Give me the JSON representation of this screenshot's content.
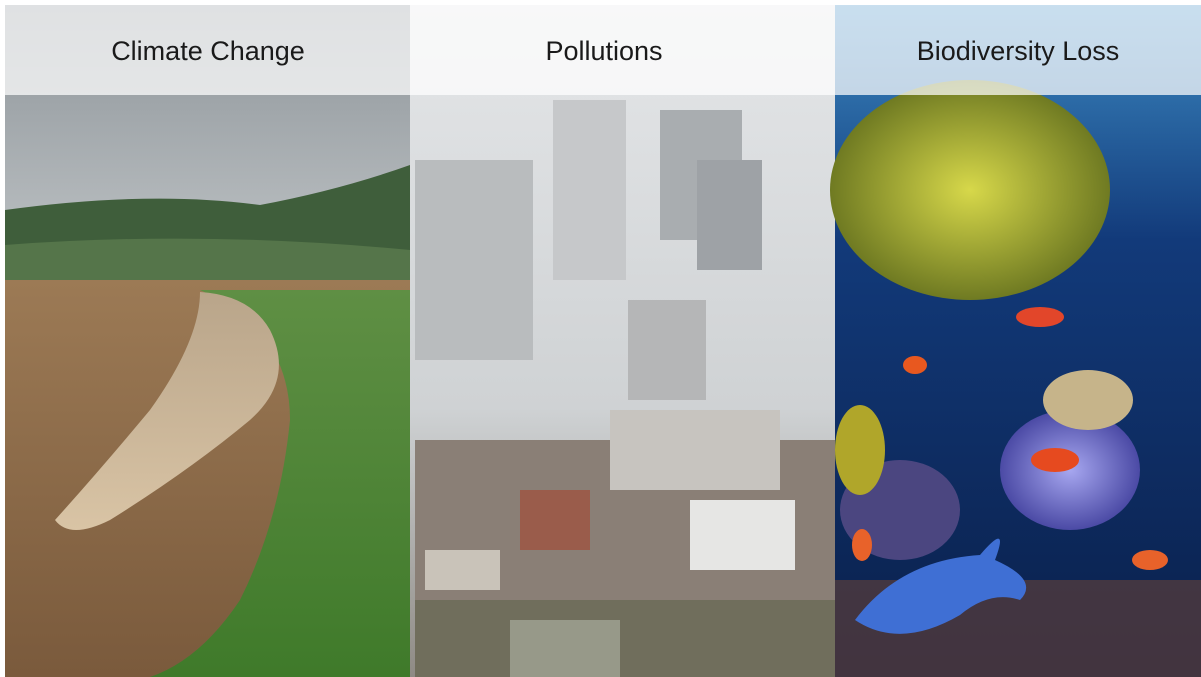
{
  "panels": [
    {
      "title": "Climate Change"
    },
    {
      "title": "Pollutions"
    },
    {
      "title": "Biodiversity Loss"
    }
  ]
}
